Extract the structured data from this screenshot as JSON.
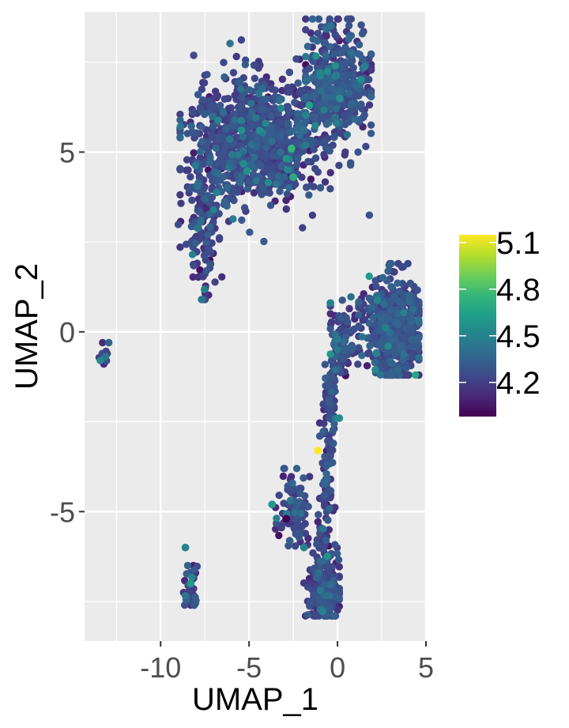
{
  "chart_data": {
    "type": "scatter",
    "title": "",
    "xlabel": "UMAP_1",
    "ylabel": "UMAP_2",
    "xlim": [
      -14.3,
      5.0
    ],
    "ylim": [
      -8.6,
      8.9
    ],
    "x_ticks": [
      -10,
      -5,
      0,
      5
    ],
    "x_tick_labels": [
      "-10",
      "-5",
      "0",
      "5"
    ],
    "y_ticks": [
      -5,
      0,
      5
    ],
    "y_tick_labels": [
      "-5",
      "0",
      "5"
    ],
    "grid": true,
    "panel_background": "#ebebeb",
    "grid_color": "#ffffff",
    "color_scale": {
      "palette": "viridis",
      "min": 3.98,
      "max": 5.15,
      "ticks": [
        4.2,
        4.5,
        4.8,
        5.1
      ],
      "tick_labels": [
        "4.2",
        "4.5",
        "4.8",
        "5.1"
      ],
      "stops": [
        "#440154",
        "#482878",
        "#3e4989",
        "#31688e",
        "#26828e",
        "#1f9e89",
        "#35b779",
        "#6ece58",
        "#b5de2b",
        "#fde725"
      ]
    },
    "legend_position": "right",
    "clusters": [
      {
        "cx": -4.8,
        "cy": 5.3,
        "sx": 1.9,
        "sy": 0.9,
        "n": 950,
        "lo": -8.9,
        "hi": 1.8,
        "clo": 2.0,
        "chi": 8.7,
        "mean": 4.22
      },
      {
        "cx": -0.1,
        "cy": 6.9,
        "sx": 1.0,
        "sy": 0.85,
        "n": 420,
        "lo": -1.8,
        "hi": 1.9,
        "clo": 5.0,
        "chi": 8.7,
        "mean": 4.25
      },
      {
        "cx": -7.6,
        "cy": 2.9,
        "sx": 0.45,
        "sy": 0.9,
        "n": 130,
        "lo": -9.0,
        "hi": -6.4,
        "clo": 0.9,
        "chi": 4.5,
        "mean": 4.2
      },
      {
        "cx": 3.2,
        "cy": 0.1,
        "sx": 0.8,
        "sy": 0.75,
        "n": 520,
        "lo": 1.2,
        "hi": 4.6,
        "clo": -1.2,
        "chi": 1.9,
        "mean": 4.24
      },
      {
        "cx": 0.2,
        "cy": -0.2,
        "sx": 0.45,
        "sy": 0.5,
        "n": 90,
        "lo": -0.4,
        "hi": 1.5,
        "clo": -1.4,
        "chi": 1.5,
        "mean": 4.22
      },
      {
        "cx": -13.2,
        "cy": -0.6,
        "sx": 0.12,
        "sy": 0.18,
        "n": 14,
        "lo": -13.6,
        "hi": -12.9,
        "clo": -0.9,
        "chi": -0.3,
        "mean": 4.2
      },
      {
        "cx": -8.3,
        "cy": -7.1,
        "sx": 0.22,
        "sy": 0.35,
        "n": 40,
        "lo": -8.9,
        "hi": -7.8,
        "clo": -7.6,
        "chi": -6.5,
        "mean": 4.22
      },
      {
        "cx": -2.4,
        "cy": -4.9,
        "sx": 0.5,
        "sy": 0.5,
        "n": 90,
        "lo": -3.5,
        "hi": -1.2,
        "clo": -6.0,
        "chi": -3.8,
        "mean": 4.22
      },
      {
        "cx": -0.7,
        "cy": -7.2,
        "sx": 0.45,
        "sy": 0.45,
        "n": 260,
        "lo": -1.9,
        "hi": 0.1,
        "clo": -7.9,
        "chi": -6.0,
        "mean": 4.2
      }
    ],
    "bridge": {
      "x0": -0.3,
      "y0": -0.9,
      "x1": -0.8,
      "y1": -6.2,
      "n": 160,
      "spread": 0.22,
      "mean": 4.22
    },
    "highlights": [
      {
        "x": -1.1,
        "y": -3.3,
        "v": 5.15
      },
      {
        "x": -2.6,
        "y": 5.1,
        "v": 4.75
      },
      {
        "x": -2.5,
        "y": 4.3,
        "v": 4.7
      },
      {
        "x": -1.6,
        "y": 6.3,
        "v": 4.65
      },
      {
        "x": -8.3,
        "y": -7.0,
        "v": 4.6
      },
      {
        "x": -3.7,
        "y": -4.8,
        "v": 4.6
      },
      {
        "x": 2.2,
        "y": -0.6,
        "v": 4.5
      },
      {
        "x": -4.4,
        "y": 5.6,
        "v": 4.55
      },
      {
        "x": 0.1,
        "y": -2.4,
        "v": 4.55
      },
      {
        "x": -8.6,
        "y": -6.0,
        "v": 4.5
      },
      {
        "x": -1.9,
        "y": -6.0,
        "v": 4.5
      },
      {
        "x": -2.9,
        "y": -5.2,
        "v": 3.98
      },
      {
        "x": -0.4,
        "y": 0.8,
        "v": 4.5
      }
    ]
  }
}
